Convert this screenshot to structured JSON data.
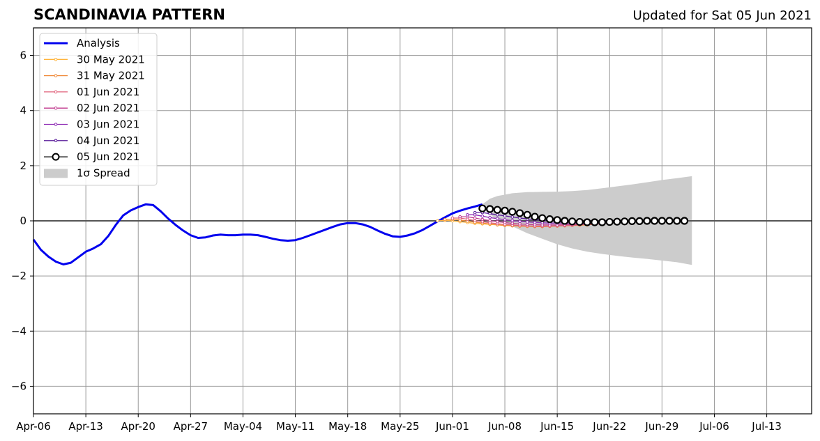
{
  "header": {
    "title": "SCANDINAVIA PATTERN",
    "updated": "Updated for Sat 05 Jun 2021"
  },
  "colors": {
    "analysis": "#0000ee",
    "spread": "#cccccc",
    "grid": "#999999",
    "zero_line": "#555555",
    "final_forecast": "#000000"
  },
  "chart_data": {
    "type": "line",
    "title": "SCANDINAVIA PATTERN",
    "xlabel": "",
    "ylabel": "",
    "xlim": [
      "2021-04-06",
      "2021-07-19"
    ],
    "ylim": [
      -7,
      7
    ],
    "grid": true,
    "legend_position": "top-left",
    "x_ticks": [
      "2021-04-06",
      "2021-04-13",
      "2021-04-20",
      "2021-04-27",
      "2021-05-04",
      "2021-05-11",
      "2021-05-18",
      "2021-05-25",
      "2021-06-01",
      "2021-06-08",
      "2021-06-15",
      "2021-06-22",
      "2021-06-29",
      "2021-07-06",
      "2021-07-13"
    ],
    "x_tick_labels": [
      "Apr-06",
      "Apr-13",
      "Apr-20",
      "Apr-27",
      "May-04",
      "May-11",
      "May-18",
      "May-25",
      "Jun-01",
      "Jun-08",
      "Jun-15",
      "Jun-22",
      "Jun-29",
      "Jul-06",
      "Jul-13"
    ],
    "y_ticks": [
      6,
      4,
      2,
      0,
      -2,
      -4,
      -6
    ],
    "y_tick_labels": [
      "6",
      "4",
      "2",
      "0",
      "−2",
      "−4",
      "−6"
    ],
    "analysis": {
      "name": "Analysis",
      "color": "#0000ee",
      "x": [
        "2021-04-06",
        "2021-04-07",
        "2021-04-08",
        "2021-04-09",
        "2021-04-10",
        "2021-04-11",
        "2021-04-12",
        "2021-04-13",
        "2021-04-14",
        "2021-04-15",
        "2021-04-16",
        "2021-04-17",
        "2021-04-18",
        "2021-04-19",
        "2021-04-20",
        "2021-04-21",
        "2021-04-22",
        "2021-04-23",
        "2021-04-24",
        "2021-04-25",
        "2021-04-26",
        "2021-04-27",
        "2021-04-28",
        "2021-04-29",
        "2021-04-30",
        "2021-05-01",
        "2021-05-02",
        "2021-05-03",
        "2021-05-04",
        "2021-05-05",
        "2021-05-06",
        "2021-05-07",
        "2021-05-08",
        "2021-05-09",
        "2021-05-10",
        "2021-05-11",
        "2021-05-12",
        "2021-05-13",
        "2021-05-14",
        "2021-05-15",
        "2021-05-16",
        "2021-05-17",
        "2021-05-18",
        "2021-05-19",
        "2021-05-20",
        "2021-05-21",
        "2021-05-22",
        "2021-05-23",
        "2021-05-24",
        "2021-05-25",
        "2021-05-26",
        "2021-05-27",
        "2021-05-28",
        "2021-05-29",
        "2021-05-30",
        "2021-05-31",
        "2021-06-01",
        "2021-06-02",
        "2021-06-03",
        "2021-06-04",
        "2021-06-05"
      ],
      "y": [
        -0.68,
        -1.05,
        -1.3,
        -1.48,
        -1.58,
        -1.52,
        -1.32,
        -1.12,
        -1.0,
        -0.85,
        -0.55,
        -0.15,
        0.2,
        0.38,
        0.5,
        0.6,
        0.57,
        0.35,
        0.08,
        -0.15,
        -0.35,
        -0.52,
        -0.62,
        -0.6,
        -0.53,
        -0.5,
        -0.52,
        -0.52,
        -0.5,
        -0.5,
        -0.52,
        -0.58,
        -0.65,
        -0.7,
        -0.72,
        -0.7,
        -0.62,
        -0.52,
        -0.42,
        -0.32,
        -0.22,
        -0.13,
        -0.08,
        -0.08,
        -0.13,
        -0.22,
        -0.35,
        -0.47,
        -0.56,
        -0.58,
        -0.53,
        -0.45,
        -0.33,
        -0.18,
        -0.02,
        0.13,
        0.27,
        0.37,
        0.45,
        0.52,
        0.6
      ]
    },
    "series": [
      {
        "name": "30 May 2021",
        "color": "#ffb43c",
        "start": "2021-05-30",
        "y": [
          0.0,
          0.02,
          0.0,
          -0.03,
          -0.06,
          -0.09,
          -0.11,
          -0.13,
          -0.15,
          -0.17,
          -0.18,
          -0.19,
          -0.2,
          -0.2,
          -0.2,
          -0.2,
          -0.19,
          -0.18,
          -0.17,
          -0.16,
          -0.15
        ]
      },
      {
        "name": "31 May 2021",
        "color": "#ef8a3a",
        "start": "2021-05-31",
        "y": [
          0.05,
          0.06,
          0.03,
          -0.01,
          -0.05,
          -0.08,
          -0.11,
          -0.14,
          -0.16,
          -0.18,
          -0.19,
          -0.2,
          -0.21,
          -0.21,
          -0.2,
          -0.19,
          -0.18,
          -0.16,
          -0.15,
          -0.14,
          -0.13
        ]
      },
      {
        "name": "01 Jun 2021",
        "color": "#e0607a",
        "start": "2021-06-01",
        "y": [
          0.1,
          0.1,
          0.06,
          0.01,
          -0.03,
          -0.07,
          -0.1,
          -0.13,
          -0.15,
          -0.17,
          -0.18,
          -0.19,
          -0.19,
          -0.19,
          -0.18,
          -0.17,
          -0.16,
          -0.15,
          -0.13,
          -0.12,
          -0.11
        ]
      },
      {
        "name": "02 Jun 2021",
        "color": "#c03a8e",
        "start": "2021-06-02",
        "y": [
          0.15,
          0.15,
          0.1,
          0.05,
          0.01,
          -0.03,
          -0.06,
          -0.09,
          -0.11,
          -0.13,
          -0.14,
          -0.15,
          -0.15,
          -0.15,
          -0.14,
          -0.13,
          -0.12,
          -0.11,
          -0.1,
          -0.09,
          -0.08
        ]
      },
      {
        "name": "03 Jun 2021",
        "color": "#8e2bb4",
        "start": "2021-06-03",
        "y": [
          0.22,
          0.22,
          0.17,
          0.12,
          0.08,
          0.04,
          0.01,
          -0.02,
          -0.04,
          -0.06,
          -0.07,
          -0.08,
          -0.08,
          -0.08,
          -0.08,
          -0.07,
          -0.06,
          -0.05,
          -0.04,
          -0.03,
          -0.02
        ]
      },
      {
        "name": "04 Jun 2021",
        "color": "#5a1c9a",
        "start": "2021-06-04",
        "y": [
          0.3,
          0.3,
          0.26,
          0.22,
          0.18,
          0.14,
          0.1,
          0.07,
          0.04,
          0.02,
          0.0,
          -0.01,
          -0.02,
          -0.02,
          -0.02,
          -0.02,
          -0.01,
          -0.01,
          0.0,
          0.0,
          0.0
        ]
      },
      {
        "name": "05 Jun 2021",
        "color": "#000000",
        "start": "2021-06-05",
        "big_markers": true,
        "y": [
          0.45,
          0.43,
          0.4,
          0.37,
          0.33,
          0.28,
          0.22,
          0.15,
          0.1,
          0.06,
          0.03,
          0.0,
          -0.02,
          -0.04,
          -0.05,
          -0.05,
          -0.05,
          -0.04,
          -0.03,
          -0.02,
          -0.01,
          -0.01,
          0.0,
          0.0,
          0.0,
          0.0,
          0.0,
          0.0
        ]
      }
    ],
    "spread": {
      "name": "1σ Spread",
      "color": "#cccccc",
      "x": [
        "2021-06-05",
        "2021-06-06",
        "2021-06-07",
        "2021-06-09",
        "2021-06-11",
        "2021-06-13",
        "2021-06-15",
        "2021-06-17",
        "2021-06-19",
        "2021-06-21",
        "2021-06-23",
        "2021-06-25",
        "2021-06-27",
        "2021-06-29",
        "2021-07-01",
        "2021-07-03"
      ],
      "upper": [
        0.6,
        0.8,
        0.9,
        1.0,
        1.04,
        1.05,
        1.06,
        1.08,
        1.12,
        1.18,
        1.25,
        1.32,
        1.4,
        1.48,
        1.55,
        1.62
      ],
      "lower": [
        0.45,
        0.25,
        0.0,
        -0.2,
        -0.45,
        -0.65,
        -0.85,
        -1.0,
        -1.12,
        -1.2,
        -1.27,
        -1.33,
        -1.38,
        -1.44,
        -1.5,
        -1.6
      ]
    }
  }
}
